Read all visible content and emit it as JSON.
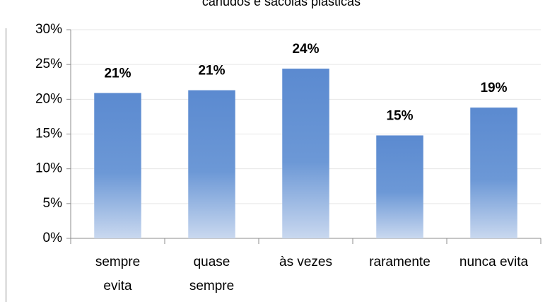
{
  "chart_data": {
    "type": "bar",
    "title": "canudos e sacolas plásticas",
    "categories": [
      "sempre\nevita",
      "quase\nsempre",
      "às vezes",
      "raramente",
      "nunca evita"
    ],
    "values": [
      20.9,
      21.3,
      24.4,
      14.8,
      18.8
    ],
    "value_labels": [
      "21%",
      "21%",
      "24%",
      "15%",
      "19%"
    ],
    "color": "#5f8fd3",
    "ylim": [
      0,
      30
    ],
    "yticks": [
      {
        "value": 0,
        "label": "0%"
      },
      {
        "value": 5,
        "label": "5%"
      },
      {
        "value": 10,
        "label": "10%"
      },
      {
        "value": 15,
        "label": "15%"
      },
      {
        "value": 20,
        "label": "20%"
      },
      {
        "value": 25,
        "label": "25%"
      },
      {
        "value": 30,
        "label": "30%"
      }
    ],
    "grid": true
  }
}
